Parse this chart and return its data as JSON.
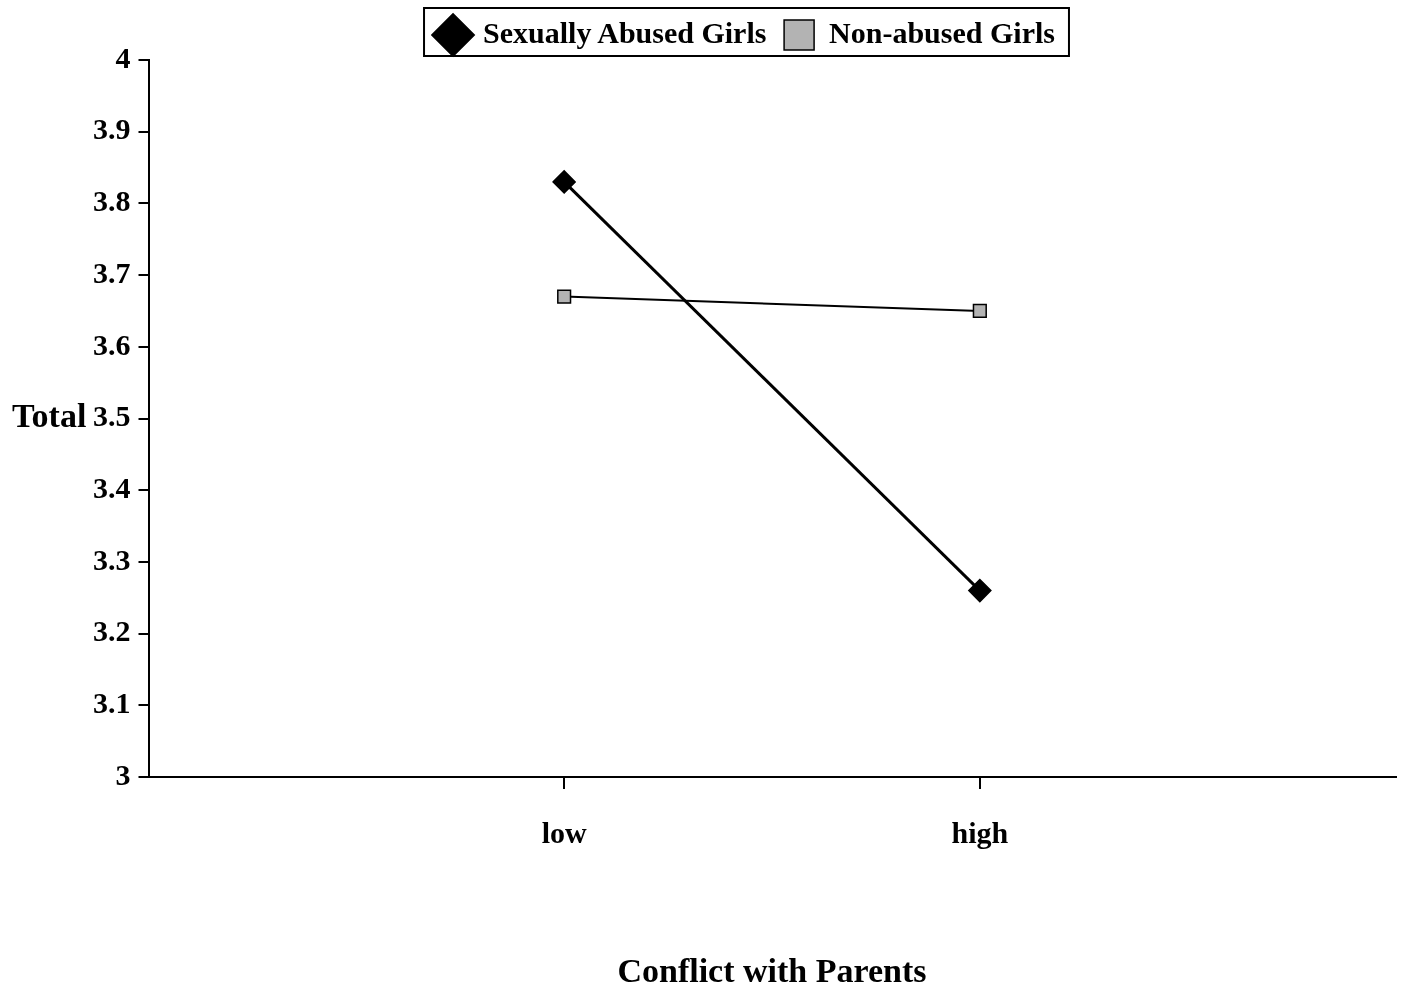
{
  "chart_data": {
    "type": "line",
    "xlabel": "Conflict with Parents",
    "ylabel": "Total",
    "categories": [
      "low",
      "high"
    ],
    "series": [
      {
        "name": "Sexually Abused Girls",
        "color": "#000000",
        "marker": "diamond",
        "values": [
          3.83,
          3.26
        ]
      },
      {
        "name": "Non-abused Girls",
        "color": "#000000",
        "marker": "square",
        "values": [
          3.67,
          3.65
        ]
      }
    ],
    "ylim": [
      3,
      4
    ],
    "yticks": [
      3,
      3.1,
      3.2,
      3.3,
      3.4,
      3.5,
      3.6,
      3.7,
      3.8,
      3.9,
      4
    ],
    "grid": false,
    "legend": "top",
    "line_style": "solid"
  }
}
